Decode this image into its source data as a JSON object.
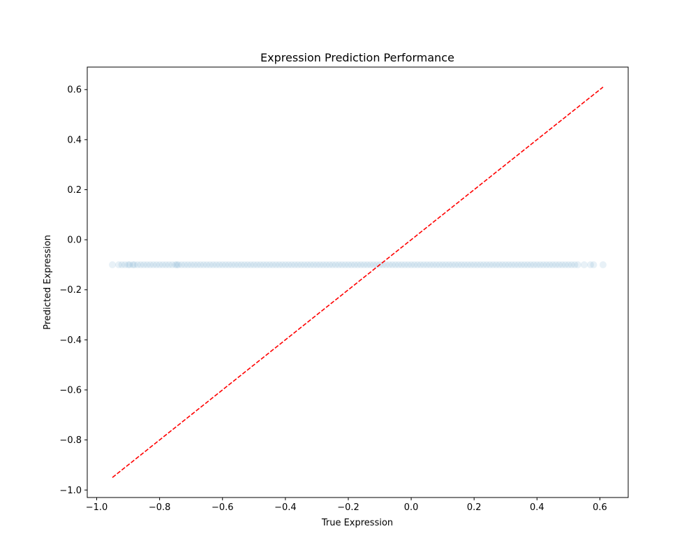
{
  "chart_data": {
    "type": "scatter",
    "title": "Expression Prediction Performance",
    "xlabel": "True Expression",
    "ylabel": "Predicted Expression",
    "xlim": [
      -1.03,
      0.69
    ],
    "ylim": [
      -1.03,
      0.69
    ],
    "xticks": [
      -1.0,
      -0.8,
      -0.6,
      -0.4,
      -0.2,
      0.0,
      0.2,
      0.4,
      0.6
    ],
    "yticks": [
      -1.0,
      -0.8,
      -0.6,
      -0.4,
      -0.2,
      0.0,
      0.2,
      0.4,
      0.6
    ],
    "xtick_labels": [
      "−1.0",
      "−0.8",
      "−0.6",
      "−0.4",
      "−0.2",
      "0.0",
      "0.2",
      "0.4",
      "0.6"
    ],
    "ytick_labels": [
      "−1.0",
      "−0.8",
      "−0.6",
      "−0.4",
      "−0.2",
      "0.0",
      "0.2",
      "0.4",
      "0.6"
    ],
    "grid": false,
    "point_color": "#1f77b4",
    "reference_line_color": "#ff0000",
    "series": [
      {
        "kind": "points",
        "predicted_value": -0.1,
        "x": [
          -0.95,
          -0.93,
          -0.92,
          -0.91,
          -0.9,
          -0.895,
          -0.885,
          -0.88,
          -0.87,
          -0.86,
          -0.85,
          -0.84,
          -0.83,
          -0.82,
          -0.81,
          -0.8,
          -0.79,
          -0.78,
          -0.77,
          -0.76,
          -0.75,
          -0.745,
          -0.74,
          -0.73,
          -0.72,
          -0.71,
          -0.7,
          -0.69,
          -0.68,
          -0.67,
          -0.66,
          -0.65,
          -0.64,
          -0.63,
          -0.62,
          -0.61,
          -0.6,
          -0.59,
          -0.58,
          -0.57,
          -0.56,
          -0.55,
          -0.54,
          -0.53,
          -0.52,
          -0.51,
          -0.5,
          -0.49,
          -0.48,
          -0.47,
          -0.46,
          -0.45,
          -0.44,
          -0.43,
          -0.42,
          -0.41,
          -0.4,
          -0.39,
          -0.38,
          -0.37,
          -0.36,
          -0.35,
          -0.34,
          -0.33,
          -0.32,
          -0.31,
          -0.3,
          -0.29,
          -0.28,
          -0.27,
          -0.26,
          -0.25,
          -0.24,
          -0.23,
          -0.22,
          -0.21,
          -0.2,
          -0.19,
          -0.18,
          -0.17,
          -0.16,
          -0.15,
          -0.14,
          -0.13,
          -0.12,
          -0.11,
          -0.1,
          -0.09,
          -0.08,
          -0.07,
          -0.06,
          -0.05,
          -0.04,
          -0.03,
          -0.02,
          -0.01,
          0.0,
          0.01,
          0.02,
          0.03,
          0.04,
          0.05,
          0.06,
          0.07,
          0.08,
          0.09,
          0.1,
          0.11,
          0.12,
          0.13,
          0.14,
          0.15,
          0.16,
          0.17,
          0.18,
          0.19,
          0.2,
          0.21,
          0.22,
          0.23,
          0.24,
          0.25,
          0.26,
          0.27,
          0.28,
          0.29,
          0.3,
          0.31,
          0.32,
          0.33,
          0.34,
          0.35,
          0.36,
          0.37,
          0.38,
          0.39,
          0.4,
          0.41,
          0.42,
          0.43,
          0.44,
          0.45,
          0.46,
          0.47,
          0.48,
          0.49,
          0.5,
          0.51,
          0.52,
          0.53,
          0.55,
          0.57,
          0.58,
          0.61
        ]
      },
      {
        "kind": "reference-line",
        "x": [
          -0.95,
          0.61
        ],
        "y": [
          -0.95,
          0.61
        ]
      }
    ]
  }
}
